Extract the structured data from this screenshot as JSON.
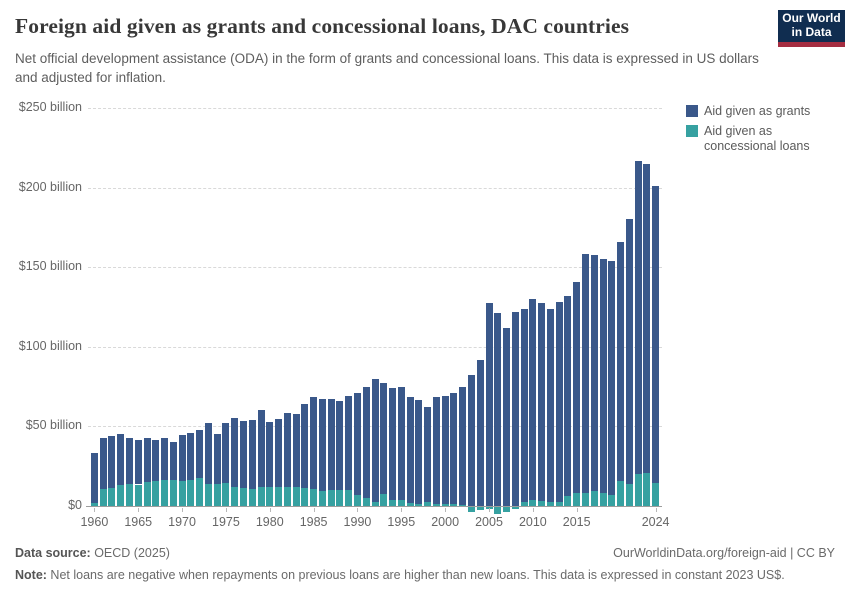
{
  "header": {
    "title": "Foreign aid given as grants and concessional loans, DAC countries",
    "subtitle": "Net official development assistance (ODA) in the form of grants and concessional loans. This data is expressed in US dollars and adjusted for inflation.",
    "logo_line1": "Our World",
    "logo_line2": "in Data",
    "logo_bg_color": "#102d50",
    "logo_accent_color": "#a52d41"
  },
  "legend": {
    "items": [
      {
        "label": "Aid given as grants",
        "color": "#3a588a"
      },
      {
        "label": "Aid given as concessional loans",
        "color": "#36a1a1"
      }
    ]
  },
  "chart_data": {
    "type": "bar",
    "stacked": true,
    "title": "Foreign aid given as grants and concessional loans, DAC countries",
    "ylabel": "",
    "xlabel": "",
    "unit": "US$ billion (constant 2023 US$)",
    "ylim": [
      0,
      250
    ],
    "grid": "horizontal-dashed",
    "legend_position": "top-right",
    "x": [
      1960,
      1961,
      1962,
      1963,
      1964,
      1965,
      1966,
      1967,
      1968,
      1969,
      1970,
      1971,
      1972,
      1973,
      1974,
      1975,
      1976,
      1977,
      1978,
      1979,
      1980,
      1981,
      1982,
      1983,
      1984,
      1985,
      1986,
      1987,
      1988,
      1989,
      1990,
      1991,
      1992,
      1993,
      1994,
      1995,
      1996,
      1997,
      1998,
      1999,
      2000,
      2001,
      2002,
      2003,
      2004,
      2005,
      2006,
      2007,
      2008,
      2009,
      2010,
      2011,
      2012,
      2013,
      2014,
      2015,
      2016,
      2017,
      2018,
      2019,
      2020,
      2021,
      2022,
      2023,
      2024
    ],
    "series": [
      {
        "name": "Aid given as grants",
        "color": "#3a588a",
        "values": [
          31,
          32.5,
          33,
          32,
          28.5,
          28,
          28,
          26,
          26,
          23.5,
          28.5,
          29.5,
          30,
          38,
          31,
          37.5,
          43,
          42.5,
          43.5,
          48.5,
          41,
          42.5,
          46.5,
          46,
          53,
          58,
          58,
          57,
          56,
          59,
          64,
          69.5,
          77.5,
          69.5,
          70,
          71,
          66.5,
          65.5,
          60,
          67.5,
          67.5,
          70,
          74.5,
          82.5,
          92,
          127.5,
          121,
          111.5,
          122,
          121,
          126,
          124.5,
          121.5,
          125.5,
          126,
          133,
          150,
          148,
          147,
          147,
          150,
          166.5,
          196.5,
          194,
          186.5
        ]
      },
      {
        "name": "Aid given as concessional loans",
        "color": "#36a1a1",
        "values": [
          2,
          10.5,
          11,
          13.5,
          14,
          13.5,
          15,
          15.5,
          16.5,
          16.5,
          16,
          16.5,
          17.5,
          14,
          14,
          14.5,
          12,
          11,
          10.5,
          12,
          12,
          12,
          12,
          12,
          11,
          10.5,
          9.5,
          10,
          10,
          10,
          7,
          5,
          2.5,
          7.5,
          4,
          4,
          2,
          1,
          2.5,
          1,
          1.5,
          1,
          0.5,
          -3,
          -2,
          -1.5,
          -4.5,
          -3,
          -1.5,
          2.5,
          4,
          3,
          2.5,
          2.5,
          6,
          8,
          8,
          9.5,
          8,
          7,
          16,
          14,
          20,
          21,
          14.5
        ]
      }
    ],
    "y_ticks": [
      {
        "value": 250,
        "label": "$250 billion"
      },
      {
        "value": 200,
        "label": "$200 billion"
      },
      {
        "value": 150,
        "label": "$150 billion"
      },
      {
        "value": 100,
        "label": "$100 billion"
      },
      {
        "value": 50,
        "label": "$50 billion"
      },
      {
        "value": 0,
        "label": "$0"
      }
    ],
    "x_tick_years": [
      1960,
      1965,
      1970,
      1975,
      1980,
      1985,
      1990,
      1995,
      2000,
      2005,
      2010,
      2015,
      2024
    ]
  },
  "footer": {
    "source_label": "Data source:",
    "source_value": " OECD (2025)",
    "link": "OurWorldinData.org/foreign-aid | CC BY",
    "note_label": "Note:",
    "note_value": " Net loans are negative when repayments on previous loans are higher than new loans. This data is expressed in constant 2023 US$."
  }
}
